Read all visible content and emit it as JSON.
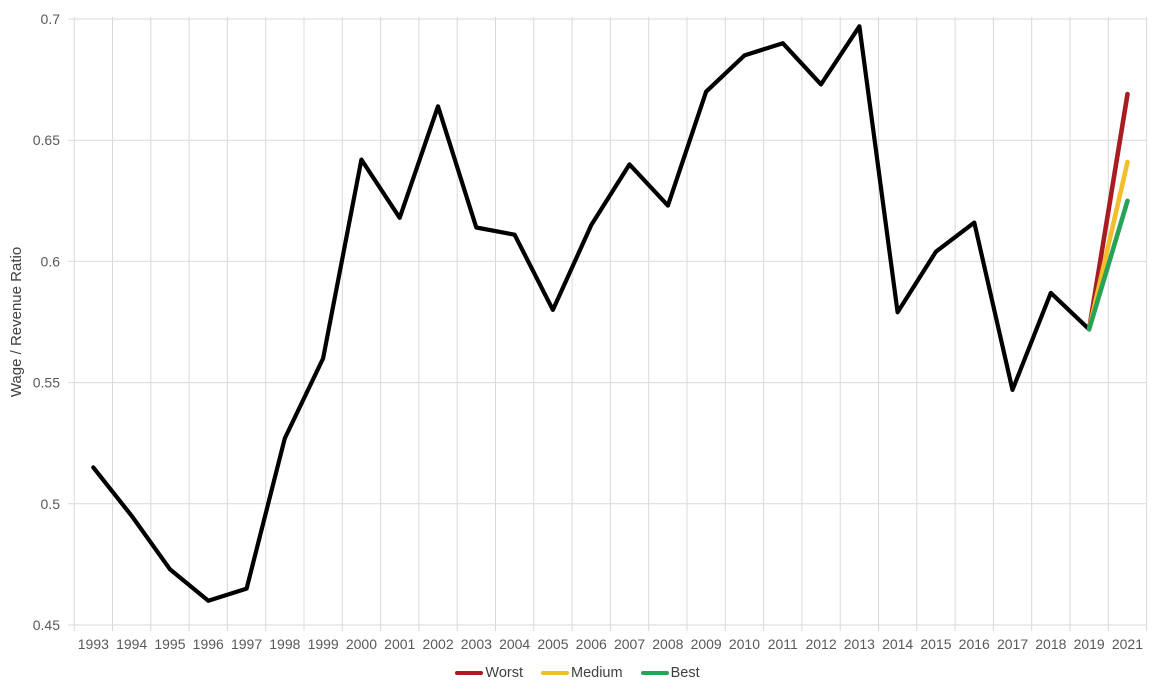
{
  "chart_data": {
    "type": "line",
    "title": "",
    "xlabel": "",
    "ylabel": "Wage / Revenue Ratio",
    "ylim": [
      0.45,
      0.7
    ],
    "yticks": [
      0.45,
      0.5,
      0.55,
      0.6,
      0.65,
      0.7
    ],
    "ytick_labels": [
      "0.45",
      "0.5",
      "0.55",
      "0.6",
      "0.65",
      "0.7"
    ],
    "grid": true,
    "gridline_color": "#d9d9d9",
    "tick_label_color": "#595959",
    "legend_position": "bottom-center",
    "categories": [
      "1993",
      "1994",
      "1995",
      "1996",
      "1997",
      "1998",
      "1999",
      "2000",
      "2001",
      "2002",
      "2003",
      "2004",
      "2005",
      "2006",
      "2007",
      "2008",
      "2009",
      "2010",
      "2011",
      "2012",
      "2013",
      "2014",
      "2015",
      "2016",
      "2017",
      "2018",
      "2019",
      "2021"
    ],
    "series": [
      {
        "name": "",
        "color": "#000000",
        "stroke_width": 4.2,
        "in_legend": false,
        "values": [
          0.515,
          0.495,
          0.473,
          0.46,
          0.465,
          0.527,
          0.56,
          0.642,
          0.618,
          0.664,
          0.614,
          0.611,
          0.58,
          0.615,
          0.64,
          0.623,
          0.67,
          0.685,
          0.69,
          0.673,
          0.697,
          0.579,
          0.604,
          0.616,
          0.547,
          0.587,
          0.572,
          null
        ]
      },
      {
        "name": "Worst",
        "color": "#a81c22",
        "stroke_width": 4.6,
        "in_legend": true,
        "values": [
          null,
          null,
          null,
          null,
          null,
          null,
          null,
          null,
          null,
          null,
          null,
          null,
          null,
          null,
          null,
          null,
          null,
          null,
          null,
          null,
          null,
          null,
          null,
          null,
          null,
          null,
          0.572,
          0.669
        ]
      },
      {
        "name": "Medium",
        "color": "#f2be2b",
        "stroke_width": 4.6,
        "in_legend": true,
        "values": [
          null,
          null,
          null,
          null,
          null,
          null,
          null,
          null,
          null,
          null,
          null,
          null,
          null,
          null,
          null,
          null,
          null,
          null,
          null,
          null,
          null,
          null,
          null,
          null,
          null,
          null,
          0.572,
          0.641
        ]
      },
      {
        "name": "Best",
        "color": "#27a358",
        "stroke_width": 4.6,
        "in_legend": true,
        "values": [
          null,
          null,
          null,
          null,
          null,
          null,
          null,
          null,
          null,
          null,
          null,
          null,
          null,
          null,
          null,
          null,
          null,
          null,
          null,
          null,
          null,
          null,
          null,
          null,
          null,
          null,
          0.572,
          0.625
        ]
      }
    ]
  }
}
